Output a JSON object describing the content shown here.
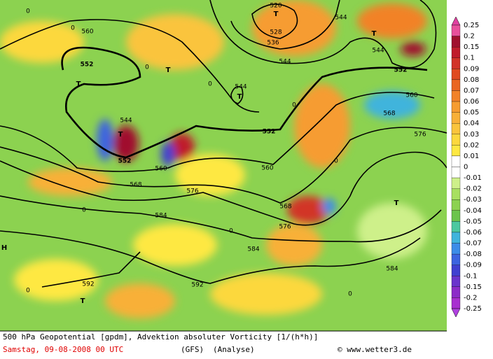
{
  "map": {
    "labels": [
      "520",
      "528",
      "536",
      "544",
      "544",
      "544",
      "552",
      "552",
      "552",
      "552",
      "544",
      "544",
      "560",
      "560",
      "560",
      "560",
      "568",
      "568",
      "568",
      "576",
      "576",
      "576",
      "584",
      "584",
      "584",
      "592",
      "592",
      "T",
      "T",
      "T",
      "T",
      "T",
      "T",
      "T",
      "T",
      "H",
      "0",
      "0",
      "0",
      "0",
      "0",
      "0",
      "0",
      "0",
      "0",
      "0"
    ]
  },
  "legend": {
    "labels": [
      "0.25",
      "0.2",
      "0.15",
      "0.1",
      "0.09",
      "0.08",
      "0.07",
      "0.06",
      "0.05",
      "0.04",
      "0.03",
      "0.02",
      "0.01",
      "0",
      "-0.01",
      "-0.02",
      "-0.03",
      "-0.04",
      "-0.05",
      "-0.06",
      "-0.07",
      "-0.08",
      "-0.09",
      "-0.1",
      "-0.15",
      "-0.2",
      "-0.25"
    ],
    "colors": [
      "#e8509c",
      "#a0102e",
      "#c01c2c",
      "#d23428",
      "#e04a20",
      "#ea6622",
      "#f28228",
      "#f69c30",
      "#f8b038",
      "#fac43c",
      "#fcd83e",
      "#fee842",
      "#ffffff",
      "#ffffff",
      "#cef08a",
      "#a8e060",
      "#8cd250",
      "#6cc44c",
      "#4cc8a0",
      "#40b4dc",
      "#3c8ce8",
      "#3c64e0",
      "#4040d0",
      "#6a34cc",
      "#8c2cc8",
      "#a830d0"
    ],
    "arrow_top": "#e040a0",
    "arrow_bottom": "#b040e0"
  },
  "footer": {
    "line1": "500 hPa Geopotential [gpdm], Advektion absoluter Vorticity [1/(h*h)]",
    "date": "Samstag, 09-08-2008  00 UTC",
    "model": "(GFS)",
    "run": "(Analyse)",
    "credit": "© www.wetter3.de"
  }
}
